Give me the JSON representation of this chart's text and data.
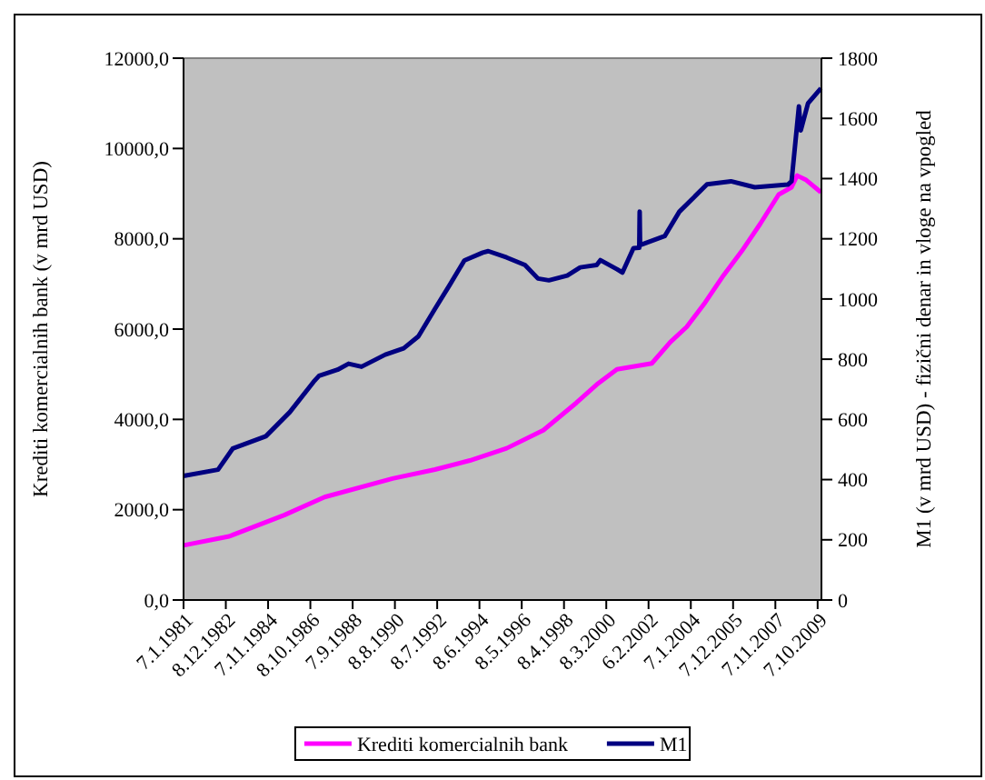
{
  "chart_data": {
    "type": "line",
    "ylabel": "Krediti komercialnih bank (v mrd USD)",
    "y2label": "M1 (v mrd USD) - fizični denar in vloge na vpogled",
    "xlim": [
      "1981-01-07",
      "2009-12-09"
    ],
    "xticks": [
      {
        "value": "1981-01-07",
        "label": "7.1.1981"
      },
      {
        "value": "1982-12-08",
        "label": "8.12.1982"
      },
      {
        "value": "1984-11-07",
        "label": "7.11.1984"
      },
      {
        "value": "1986-10-08",
        "label": "8.10.1986"
      },
      {
        "value": "1988-09-07",
        "label": "7.9.1988"
      },
      {
        "value": "1990-08-08",
        "label": "8.8.1990"
      },
      {
        "value": "1992-07-08",
        "label": "8.7.1992"
      },
      {
        "value": "1994-06-08",
        "label": "8.6.1994"
      },
      {
        "value": "1996-05-08",
        "label": "8.5.1996"
      },
      {
        "value": "1998-04-08",
        "label": "8.4.1998"
      },
      {
        "value": "2000-03-08",
        "label": "8.3.2000"
      },
      {
        "value": "2002-02-06",
        "label": "6.2.2002"
      },
      {
        "value": "2004-01-07",
        "label": "7.1.2004"
      },
      {
        "value": "2005-12-07",
        "label": "7.12.2005"
      },
      {
        "value": "2007-11-07",
        "label": "7.11.2007"
      },
      {
        "value": "2009-10-07",
        "label": "7.10.2009"
      }
    ],
    "ylim": [
      0,
      12000
    ],
    "yticks": [
      {
        "value": 0,
        "label": "0,0"
      },
      {
        "value": 2000,
        "label": "2000,0"
      },
      {
        "value": 4000,
        "label": "4000,0"
      },
      {
        "value": 6000,
        "label": "6000,0"
      },
      {
        "value": 8000,
        "label": "8000,0"
      },
      {
        "value": 10000,
        "label": "10000,0"
      },
      {
        "value": 12000,
        "label": "12000,0"
      }
    ],
    "y2lim": [
      0,
      1800
    ],
    "y2ticks": [
      0,
      200,
      400,
      600,
      800,
      1000,
      1200,
      1400,
      1600,
      1800
    ],
    "grid": false,
    "legend": "bottom",
    "series": [
      {
        "name": "Krediti komercialnih bank",
        "color": "#ff00ff",
        "x": [
          "1981-01-07",
          "1983-02",
          "1985-08",
          "1987-06",
          "1990-07",
          "1992-06",
          "1994-01",
          "1995-09",
          "1997-05",
          "1998-11",
          "1999-10",
          "2000-09",
          "2002-04",
          "2003-02",
          "2003-11",
          "2004-09",
          "2005-07",
          "2006-05",
          "2007-03",
          "2008-01",
          "2008-08",
          "2008-11",
          "2009-04",
          "2009-12"
        ],
        "values": [
          1210,
          1410,
          1880,
          2280,
          2690,
          2890,
          3090,
          3360,
          3760,
          4370,
          4770,
          5110,
          5240,
          5710,
          6050,
          6590,
          7190,
          7730,
          8330,
          8980,
          9140,
          9400,
          9300,
          9030
        ]
      },
      {
        "name": "M1",
        "color": "#000080",
        "axis": "y2",
        "x": [
          "1981-01-07",
          "1982-08",
          "1983-04",
          "1984-10",
          "1985-11",
          "1986-12",
          "1987-03",
          "1988-01",
          "1988-07",
          "1989-02",
          "1990-03",
          "1991-01",
          "1991-09",
          "1992-06",
          "1993-02",
          "1993-10",
          "1994-08",
          "1994-11",
          "1995-09",
          "1996-07",
          "1997-02",
          "1997-08",
          "1998-06",
          "1999-01",
          "1999-10",
          "1999-12",
          "2000-09",
          "2000-12",
          "2001-06",
          "2001-09-05",
          "2001-09-12",
          "2001-09-19",
          "2002-11",
          "2003-07",
          "2004-10",
          "2005-11",
          "2006-12",
          "2008-06",
          "2008-08",
          "2008-12",
          "2009-01",
          "2009-05",
          "2009-12"
        ],
        "values": [
          412,
          433,
          503,
          544,
          624,
          725,
          745,
          765,
          785,
          775,
          815,
          836,
          876,
          967,
          1047,
          1128,
          1154,
          1159,
          1138,
          1113,
          1068,
          1062,
          1078,
          1105,
          1113,
          1129,
          1099,
          1088,
          1169,
          1170,
          1290,
          1179,
          1209,
          1290,
          1381,
          1391,
          1371,
          1380,
          1391,
          1640,
          1560,
          1650,
          1700
        ]
      }
    ]
  }
}
